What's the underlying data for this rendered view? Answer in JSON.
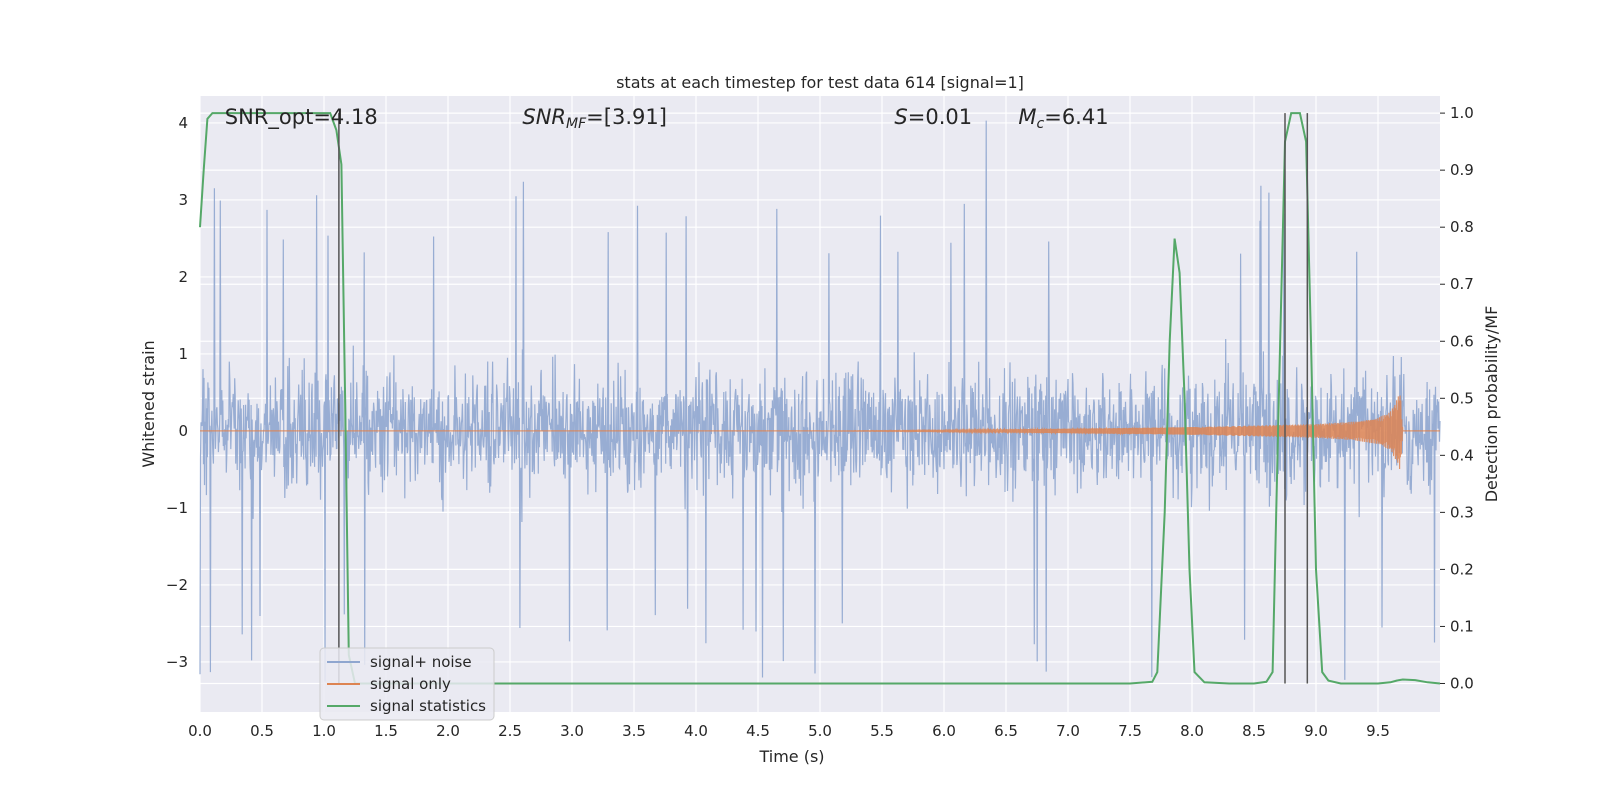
{
  "chart_data": {
    "type": "line",
    "title": "stats at each timestep for test data 614 [signal=1]",
    "xlabel": "Time (s)",
    "ylabel_left": "Whitened strain",
    "ylabel_right": "Detection probability/MF",
    "xlim": [
      0.0,
      10.0
    ],
    "ylim_left": [
      -3.65,
      4.35
    ],
    "ylim_right": [
      -0.05,
      1.03
    ],
    "x_ticks": [
      "0.0",
      "0.5",
      "1.0",
      "1.5",
      "2.0",
      "2.5",
      "3.0",
      "3.5",
      "4.0",
      "4.5",
      "5.0",
      "5.5",
      "6.0",
      "6.5",
      "7.0",
      "7.5",
      "8.0",
      "8.5",
      "9.0",
      "9.5"
    ],
    "y_ticks_left": [
      "−3",
      "−2",
      "−1",
      "0",
      "1",
      "2",
      "3",
      "4"
    ],
    "y_ticks_right": [
      "0.0",
      "0.1",
      "0.2",
      "0.3",
      "0.4",
      "0.5",
      "0.6",
      "0.7",
      "0.8",
      "0.9",
      "1.0"
    ],
    "grid": true,
    "legend_position": "lower-left",
    "annotations": [
      {
        "text": "SNR_opt=4.18",
        "x": 0.2
      },
      {
        "text": "SNR_MF=[3.91]",
        "x": 2.6
      },
      {
        "text": "S=0.01",
        "x": 5.6
      },
      {
        "text": "M_c=6.41",
        "x": 6.6
      }
    ],
    "vertical_lines_x": [
      1.12,
      8.75,
      8.93
    ],
    "series": [
      {
        "name": "signal+ noise",
        "axis": "left",
        "color": "#8fa6cf",
        "description_values": "whitened noise band roughly within ±2 with spikes to about ±3.3; peak 4.03 at 6.34"
      },
      {
        "name": "signal only",
        "axis": "left",
        "color": "#dd8452",
        "envelope_x": [
          0.0,
          5.0,
          6.0,
          7.0,
          8.0,
          8.5,
          9.0,
          9.3,
          9.5,
          9.6,
          9.65,
          9.68,
          9.7,
          10.0
        ],
        "envelope_y": [
          0.0,
          0.0,
          0.01,
          0.03,
          0.05,
          0.07,
          0.09,
          0.12,
          0.17,
          0.25,
          0.4,
          0.52,
          0.0,
          0.0
        ]
      },
      {
        "name": "signal statistics",
        "axis": "right",
        "color": "#55a868",
        "x": [
          0.0,
          0.03,
          0.06,
          0.1,
          0.2,
          0.5,
          0.8,
          1.05,
          1.1,
          1.14,
          1.17,
          1.2,
          1.25,
          2.0,
          4.0,
          6.0,
          7.5,
          7.68,
          7.72,
          7.78,
          7.82,
          7.86,
          7.9,
          7.94,
          7.98,
          8.02,
          8.1,
          8.3,
          8.5,
          8.6,
          8.65,
          8.7,
          8.75,
          8.8,
          8.87,
          8.92,
          8.96,
          9.0,
          9.05,
          9.1,
          9.2,
          9.3,
          9.5,
          9.6,
          9.65,
          9.7,
          9.8,
          9.9,
          10.0
        ],
        "y": [
          0.8,
          0.9,
          0.99,
          1.0,
          1.0,
          1.0,
          1.0,
          1.0,
          0.97,
          0.91,
          0.5,
          0.05,
          0.0,
          0.0,
          0.0,
          0.0,
          0.0,
          0.003,
          0.02,
          0.3,
          0.6,
          0.78,
          0.72,
          0.5,
          0.2,
          0.02,
          0.002,
          0.0,
          0.0,
          0.003,
          0.02,
          0.5,
          0.95,
          1.0,
          1.0,
          0.95,
          0.6,
          0.2,
          0.02,
          0.005,
          0.0,
          0.0,
          0.0,
          0.002,
          0.005,
          0.007,
          0.006,
          0.002,
          0.0
        ]
      }
    ]
  }
}
